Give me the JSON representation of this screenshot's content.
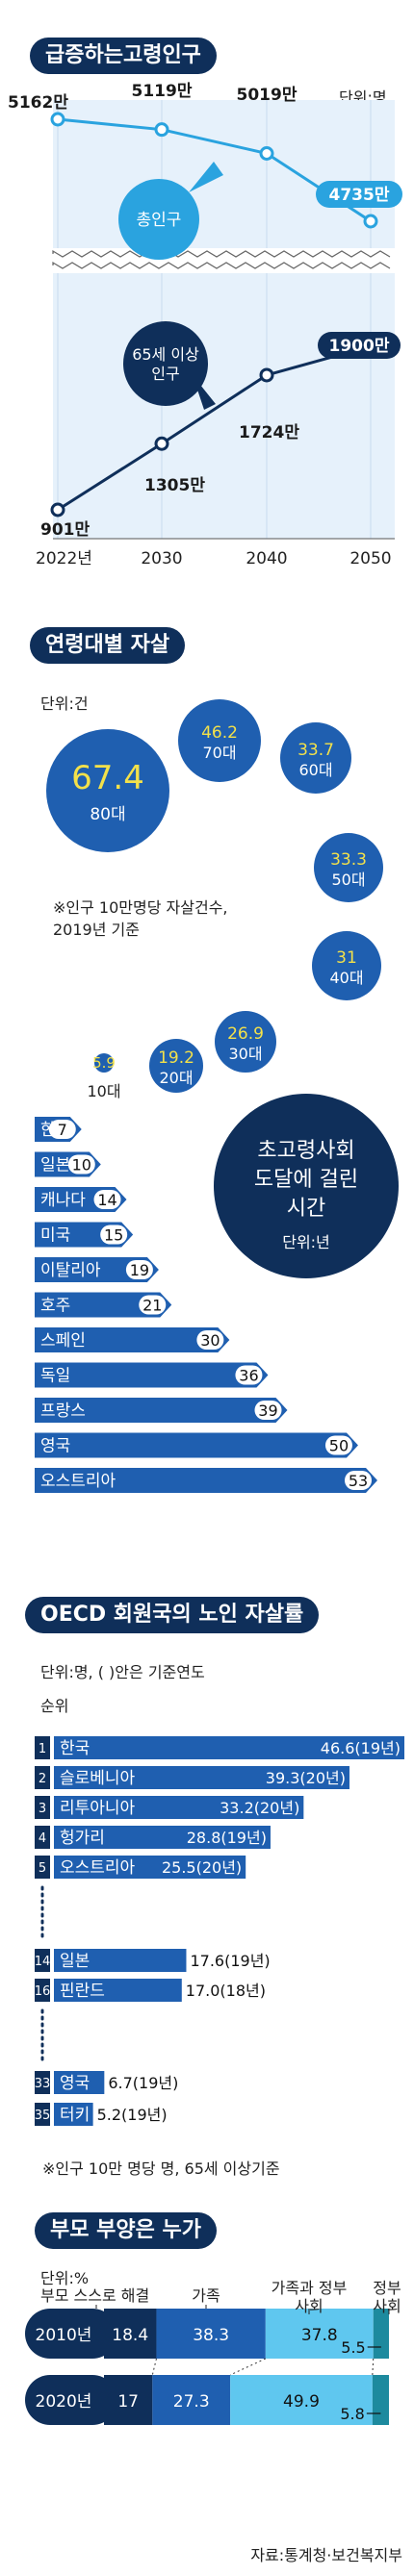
{
  "colors": {
    "navy": "#0f2f5a",
    "blue": "#1f5fb0",
    "sky": "#2aa3df",
    "light": "#5fc7ef",
    "teal": "#1d8a9e",
    "yellow": "#f3e14a"
  },
  "section1": {
    "title": "급증하는고령인구",
    "unit": "단위:명",
    "chart_data": {
      "type": "line",
      "x": [
        "2022년",
        "2030",
        "2040",
        "2050"
      ],
      "series": [
        {
          "name": "총인구",
          "values": [
            5162,
            5119,
            5019,
            4735
          ],
          "labels": [
            "5162만",
            "5119만",
            "5019만",
            "4735만"
          ]
        },
        {
          "name": "65세 이상 인구",
          "values": [
            901,
            1305,
            1724,
            1900
          ],
          "labels": [
            "901만",
            "1305만",
            "1724만",
            "1900만"
          ]
        }
      ]
    }
  },
  "section2": {
    "title": "연령대별 자살",
    "unit": "단위:건",
    "note_line1": "※인구 10만명당 자살건수,",
    "note_line2": "2019년 기준",
    "chart_data": {
      "type": "bubble",
      "categories": [
        "80대",
        "70대",
        "60대",
        "50대",
        "40대",
        "30대",
        "20대",
        "10대"
      ],
      "values": [
        67.4,
        46.2,
        33.7,
        33.3,
        31,
        26.9,
        19.2,
        5.9
      ],
      "labels": [
        "67.4",
        "46.2",
        "33.7",
        "33.3",
        "31",
        "26.9",
        "19.2",
        "5.9"
      ]
    }
  },
  "section3": {
    "title_line1": "초고령사회",
    "title_line2": "도달에 걸린",
    "title_line3": "시간",
    "unit": "단위:년",
    "chart_data": {
      "type": "bar",
      "categories": [
        "한국",
        "일본",
        "캐나다",
        "미국",
        "이탈리아",
        "호주",
        "스페인",
        "독일",
        "프랑스",
        "영국",
        "오스트리아"
      ],
      "values": [
        7,
        10,
        14,
        15,
        19,
        21,
        30,
        36,
        39,
        50,
        53
      ]
    }
  },
  "section4": {
    "title": "OECD 회원국의 노인 자살률",
    "unit": "단위:명, ( )안은 기준연도",
    "rank_header": "순위",
    "note": "※인구 10만 명당 명, 65세 이상기준",
    "chart_data": {
      "type": "bar",
      "ranks": [
        "1",
        "2",
        "3",
        "4",
        "5",
        "14",
        "16",
        "33",
        "35"
      ],
      "categories": [
        "한국",
        "슬로베니아",
        "리투아니아",
        "헝가리",
        "오스트리아",
        "일본",
        "핀란드",
        "영국",
        "터키"
      ],
      "values": [
        46.6,
        39.3,
        33.2,
        28.8,
        25.5,
        17.6,
        17.0,
        6.7,
        5.2
      ],
      "labels": [
        "46.6(19년)",
        "39.3(20년)",
        "33.2(20년)",
        "28.8(19년)",
        "25.5(20년)",
        "17.6(19년)",
        "17.0(18년)",
        "6.7(19년)",
        "5.2(19년)"
      ]
    }
  },
  "section5": {
    "title": "부모 부양은 누가",
    "unit": "단위:%",
    "chart_data": {
      "type": "stacked-bar",
      "categories": [
        "2010년",
        "2020년"
      ],
      "series": [
        {
          "name": "부모 스스로 해결",
          "values": [
            18.4,
            17
          ]
        },
        {
          "name": "가족",
          "values": [
            38.3,
            27.3
          ]
        },
        {
          "name": "가족과 정부 사회",
          "values": [
            37.8,
            49.9
          ]
        },
        {
          "name": "정부 사회",
          "values": [
            5.5,
            5.8
          ]
        }
      ],
      "labels": [
        [
          "18.4",
          "38.3",
          "37.8",
          "5.5"
        ],
        [
          "17",
          "27.3",
          "49.9",
          "5.8"
        ]
      ],
      "legend_labels": [
        "부모 스스로 해결",
        "가족",
        "가족과 정부",
        "사회",
        "정부",
        "사회"
      ]
    }
  },
  "source": "자료:통계청·보건복지부"
}
